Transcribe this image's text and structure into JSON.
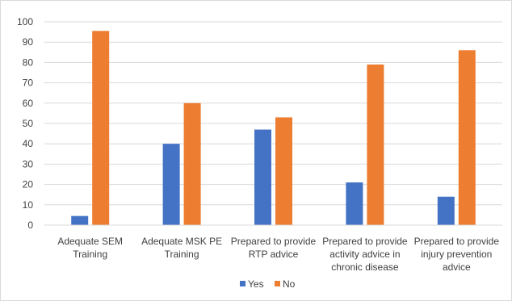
{
  "chart_data": {
    "type": "bar",
    "categories": [
      "Adequate SEM Training",
      "Adequate MSK PE Training",
      "Prepared to provide RTP advice",
      "Prepared to provide activity advice in chronic disease",
      "Prepared to provide injury prevention advice"
    ],
    "category_lines": [
      [
        "Adequate SEM",
        "Training"
      ],
      [
        "Adequate MSK PE",
        "Training"
      ],
      [
        "Prepared to provide",
        "RTP advice"
      ],
      [
        "Prepared to provide",
        "activity advice in",
        "chronic disease"
      ],
      [
        "Prepared to provide",
        "injury prevention",
        "advice"
      ]
    ],
    "series": [
      {
        "name": "Yes",
        "color": "#4472C4",
        "values": [
          4.5,
          40,
          47,
          21,
          14
        ]
      },
      {
        "name": "No",
        "color": "#ED7D31",
        "values": [
          95.5,
          60,
          53,
          79,
          86
        ]
      }
    ],
    "ylim": [
      0,
      100
    ],
    "yticks": [
      0,
      10,
      20,
      30,
      40,
      50,
      60,
      70,
      80,
      90,
      100
    ],
    "grid": true,
    "legend_position": "bottom-center",
    "title": "",
    "xlabel": "",
    "ylabel": ""
  }
}
